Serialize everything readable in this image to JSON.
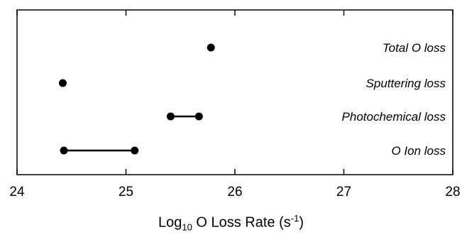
{
  "chart_data": {
    "type": "scatter",
    "title": "",
    "xlabel": {
      "prefix": "Log",
      "prefix_sub": "10",
      "middle": " O Loss Rate (s",
      "sup": "-1",
      "suffix": ")"
    },
    "ylabel": "",
    "xlim": [
      24,
      28
    ],
    "xticks": [
      "24",
      "25",
      "26",
      "27",
      "28"
    ],
    "grid": false,
    "legend": "none",
    "color": "#000000",
    "rows": [
      {
        "label": "Total O loss",
        "min": 25.78,
        "max": 25.78
      },
      {
        "label": "Sputtering loss",
        "min": 24.42,
        "max": 24.42
      },
      {
        "label": "Photochemical loss",
        "min": 25.41,
        "max": 25.67
      },
      {
        "label": "O Ion loss",
        "min": 24.43,
        "max": 25.08
      }
    ]
  }
}
